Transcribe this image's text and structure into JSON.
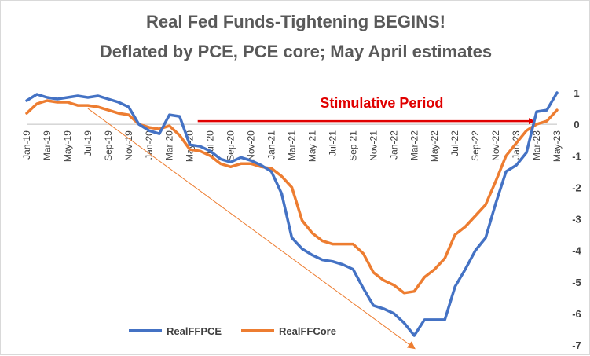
{
  "chart_data": {
    "type": "line",
    "title": "Real Fed Funds-Tightening BEGINS!",
    "subtitle": "Deflated by PCE, PCE core; May April estimates",
    "x": [
      "Jan-19",
      "Feb-19",
      "Mar-19",
      "Apr-19",
      "May-19",
      "Jun-19",
      "Jul-19",
      "Aug-19",
      "Sep-19",
      "Oct-19",
      "Nov-19",
      "Dec-19",
      "Jan-20",
      "Feb-20",
      "Mar-20",
      "Apr-20",
      "May-20",
      "Jun-20",
      "Jul-20",
      "Aug-20",
      "Sep-20",
      "Oct-20",
      "Nov-20",
      "Dec-20",
      "Jan-21",
      "Feb-21",
      "Mar-21",
      "Apr-21",
      "May-21",
      "Jun-21",
      "Jul-21",
      "Aug-21",
      "Sep-21",
      "Oct-21",
      "Nov-21",
      "Dec-21",
      "Jan-22",
      "Feb-22",
      "Mar-22",
      "Apr-22",
      "May-22",
      "Jun-22",
      "Jul-22",
      "Aug-22",
      "Sep-22",
      "Oct-22",
      "Nov-22",
      "Dec-22",
      "Jan-23",
      "Feb-23",
      "Mar-23",
      "Apr-23",
      "May-23"
    ],
    "x_tick_labels": [
      "Jan-19",
      "Mar-19",
      "May-19",
      "Jul-19",
      "Sep-19",
      "Nov-19",
      "Jan-20",
      "Mar-20",
      "May-20",
      "Jul-20",
      "Sep-20",
      "Nov-20",
      "Jan-21",
      "Mar-21",
      "May-21",
      "Jul-21",
      "Sep-21",
      "Nov-21",
      "Jan-22",
      "Mar-22",
      "May-22",
      "Jul-22",
      "Sep-22",
      "Nov-22",
      "Jan-23",
      "Mar-23",
      "May-23"
    ],
    "series": [
      {
        "name": "RealFFPCE",
        "color": "#4472c4",
        "values": [
          0.75,
          0.95,
          0.85,
          0.8,
          0.85,
          0.9,
          0.85,
          0.9,
          0.8,
          0.7,
          0.55,
          0.0,
          -0.2,
          -0.3,
          0.3,
          0.25,
          -0.65,
          -0.7,
          -0.85,
          -1.1,
          -1.2,
          -1.05,
          -1.15,
          -1.3,
          -1.5,
          -2.2,
          -3.6,
          -3.95,
          -4.15,
          -4.3,
          -4.35,
          -4.45,
          -4.6,
          -5.2,
          -5.75,
          -5.85,
          -6.0,
          -6.3,
          -6.7,
          -6.2,
          -6.2,
          -6.2,
          -5.15,
          -4.6,
          -4.0,
          -3.6,
          -2.5,
          -1.5,
          -1.3,
          -0.9,
          0.4,
          0.45,
          1.0
        ]
      },
      {
        "name": "RealFFCore",
        "color": "#ed7d31",
        "values": [
          0.35,
          0.65,
          0.75,
          0.7,
          0.7,
          0.6,
          0.6,
          0.55,
          0.45,
          0.35,
          0.3,
          0.0,
          -0.1,
          -0.15,
          -0.05,
          -0.35,
          -0.8,
          -0.85,
          -1.0,
          -1.25,
          -1.35,
          -1.25,
          -1.25,
          -1.35,
          -1.4,
          -1.65,
          -2.0,
          -3.05,
          -3.45,
          -3.7,
          -3.8,
          -3.8,
          -3.8,
          -4.1,
          -4.7,
          -4.95,
          -5.1,
          -5.35,
          -5.3,
          -4.85,
          -4.6,
          -4.25,
          -3.5,
          -3.25,
          -2.9,
          -2.55,
          -1.8,
          -1.0,
          -0.6,
          -0.2,
          0.0,
          0.1,
          0.45
        ]
      }
    ],
    "ylim": [
      -7,
      1
    ],
    "yticks": [
      1,
      0,
      -1,
      -2,
      -3,
      -4,
      -5,
      -6,
      -7
    ],
    "y_axis_side": "right",
    "legend": "bottom-left",
    "grid": false,
    "annotations": [
      {
        "text": "Stimulative Period",
        "color": "#e00000",
        "arrow_from": "May-20",
        "arrow_to": "Mar-23",
        "y": 0.1
      },
      {
        "arrow_from_x": "Jul-19",
        "arrow_from_y": 0.5,
        "arrow_to_x": "Mar-22",
        "arrow_to_y": -7.1,
        "color": "#ed7d31"
      }
    ]
  }
}
